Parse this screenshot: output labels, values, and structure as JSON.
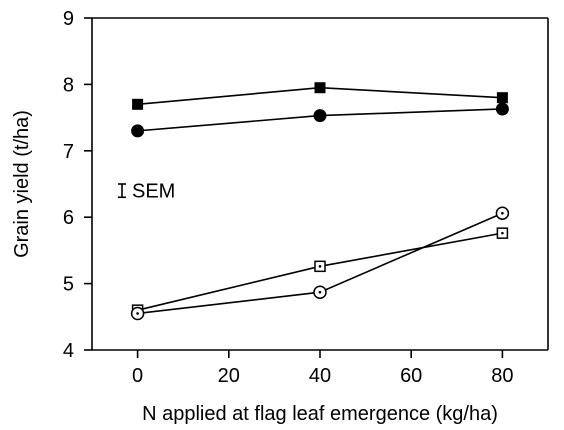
{
  "chart_data": {
    "type": "scatter",
    "x": [
      0,
      40,
      80
    ],
    "xlabel": "N applied at flag leaf emergence (kg/ha)",
    "ylabel": "Grain yield (t/ha)",
    "xlim": [
      -10,
      90
    ],
    "ylim": [
      4,
      9
    ],
    "x_ticks": [
      "0",
      "20",
      "40",
      "60",
      "80"
    ],
    "y_ticks": [
      "4",
      "5",
      "6",
      "7",
      "8",
      "9"
    ],
    "annotation": "SEM",
    "legend": "none",
    "grid": false,
    "series": [
      {
        "marker": "filled-square",
        "values": [
          7.7,
          7.95,
          7.8
        ]
      },
      {
        "marker": "filled-circle",
        "values": [
          7.3,
          7.53,
          7.63
        ]
      },
      {
        "marker": "open-square",
        "values": [
          4.6,
          5.26,
          5.76
        ]
      },
      {
        "marker": "open-circle",
        "values": [
          4.55,
          4.87,
          6.06
        ]
      }
    ],
    "error_bar": {
      "label": "SEM",
      "size": 0.1
    }
  }
}
